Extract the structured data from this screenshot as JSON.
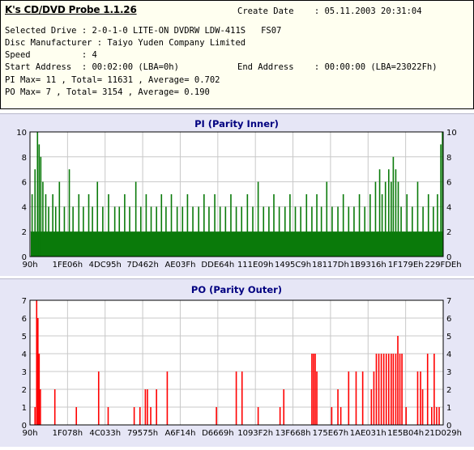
{
  "info": {
    "app_title": "K's CD/DVD Probe 1.1.26",
    "create_date": "Create Date    : 05.11.2003 20:31:04",
    "selected_drive": "Selected Drive : 2-0-1-0 LITE-ON DVDRW LDW-411S   FS07",
    "disc_manufacturer": "Disc Manufacturer : Taiyo Yuden Company Limited",
    "speed": "Speed          : 4",
    "start_address": "Start Address  : 00:02:00 (LBA=0h)",
    "end_address": "End Address    : 00:00:00 (LBA=23022Fh)",
    "pi_summary": "PI Max= 11 , Total= 11631 , Average= 0.702",
    "po_summary": "PO Max= 7 , Total= 3154 , Average= 0.190"
  },
  "colors": {
    "pi_bars": "#0a7a0a",
    "po_bars": "#ff0000",
    "title": "#000080",
    "panel_bg": "#e6e6f6"
  },
  "chart_data": [
    {
      "type": "bar",
      "title": "PI (Parity Inner)",
      "ylim": [
        0,
        10
      ],
      "yticks": [
        "0",
        "2",
        "4",
        "6",
        "8",
        "10"
      ],
      "xtick_labels": [
        "90h",
        "1FE06h",
        "4DC95h",
        "7D462h",
        "AE03Fh",
        "DDE64h",
        "111E09h",
        "1495C9h",
        "18117Dh",
        "1B9316h",
        "1F179Eh",
        "229FDEh"
      ],
      "x_range": [
        "90h",
        "229FDEh"
      ],
      "baseline": 2,
      "dense_baseline_level": 2,
      "grid": true,
      "spikes": [
        {
          "x": 0.005,
          "v": 5
        },
        {
          "x": 0.012,
          "v": 7
        },
        {
          "x": 0.018,
          "v": 10
        },
        {
          "x": 0.022,
          "v": 9
        },
        {
          "x": 0.026,
          "v": 8
        },
        {
          "x": 0.031,
          "v": 6
        },
        {
          "x": 0.038,
          "v": 5
        },
        {
          "x": 0.045,
          "v": 4
        },
        {
          "x": 0.055,
          "v": 5
        },
        {
          "x": 0.062,
          "v": 4
        },
        {
          "x": 0.071,
          "v": 6
        },
        {
          "x": 0.083,
          "v": 4
        },
        {
          "x": 0.095,
          "v": 7
        },
        {
          "x": 0.104,
          "v": 4
        },
        {
          "x": 0.118,
          "v": 5
        },
        {
          "x": 0.129,
          "v": 4
        },
        {
          "x": 0.142,
          "v": 5
        },
        {
          "x": 0.151,
          "v": 4
        },
        {
          "x": 0.163,
          "v": 6
        },
        {
          "x": 0.176,
          "v": 4
        },
        {
          "x": 0.19,
          "v": 5
        },
        {
          "x": 0.205,
          "v": 4
        },
        {
          "x": 0.216,
          "v": 4
        },
        {
          "x": 0.229,
          "v": 5
        },
        {
          "x": 0.241,
          "v": 4
        },
        {
          "x": 0.256,
          "v": 6
        },
        {
          "x": 0.268,
          "v": 4
        },
        {
          "x": 0.281,
          "v": 5
        },
        {
          "x": 0.293,
          "v": 4
        },
        {
          "x": 0.306,
          "v": 4
        },
        {
          "x": 0.318,
          "v": 5
        },
        {
          "x": 0.329,
          "v": 4
        },
        {
          "x": 0.342,
          "v": 5
        },
        {
          "x": 0.356,
          "v": 4
        },
        {
          "x": 0.369,
          "v": 4
        },
        {
          "x": 0.381,
          "v": 5
        },
        {
          "x": 0.394,
          "v": 4
        },
        {
          "x": 0.408,
          "v": 4
        },
        {
          "x": 0.421,
          "v": 5
        },
        {
          "x": 0.433,
          "v": 4
        },
        {
          "x": 0.447,
          "v": 5
        },
        {
          "x": 0.46,
          "v": 4
        },
        {
          "x": 0.473,
          "v": 4
        },
        {
          "x": 0.486,
          "v": 5
        },
        {
          "x": 0.499,
          "v": 4
        },
        {
          "x": 0.512,
          "v": 4
        },
        {
          "x": 0.526,
          "v": 5
        },
        {
          "x": 0.539,
          "v": 4
        },
        {
          "x": 0.552,
          "v": 6
        },
        {
          "x": 0.565,
          "v": 4
        },
        {
          "x": 0.578,
          "v": 4
        },
        {
          "x": 0.59,
          "v": 5
        },
        {
          "x": 0.603,
          "v": 4
        },
        {
          "x": 0.617,
          "v": 4
        },
        {
          "x": 0.629,
          "v": 5
        },
        {
          "x": 0.642,
          "v": 4
        },
        {
          "x": 0.655,
          "v": 4
        },
        {
          "x": 0.669,
          "v": 5
        },
        {
          "x": 0.682,
          "v": 4
        },
        {
          "x": 0.694,
          "v": 5
        },
        {
          "x": 0.705,
          "v": 4
        },
        {
          "x": 0.718,
          "v": 6
        },
        {
          "x": 0.731,
          "v": 4
        },
        {
          "x": 0.745,
          "v": 4
        },
        {
          "x": 0.758,
          "v": 5
        },
        {
          "x": 0.771,
          "v": 4
        },
        {
          "x": 0.784,
          "v": 4
        },
        {
          "x": 0.797,
          "v": 5
        },
        {
          "x": 0.81,
          "v": 4
        },
        {
          "x": 0.823,
          "v": 5
        },
        {
          "x": 0.836,
          "v": 6
        },
        {
          "x": 0.846,
          "v": 7
        },
        {
          "x": 0.852,
          "v": 5
        },
        {
          "x": 0.86,
          "v": 6
        },
        {
          "x": 0.868,
          "v": 7
        },
        {
          "x": 0.874,
          "v": 6
        },
        {
          "x": 0.879,
          "v": 8
        },
        {
          "x": 0.885,
          "v": 7
        },
        {
          "x": 0.891,
          "v": 6
        },
        {
          "x": 0.898,
          "v": 4
        },
        {
          "x": 0.912,
          "v": 5
        },
        {
          "x": 0.925,
          "v": 4
        },
        {
          "x": 0.938,
          "v": 6
        },
        {
          "x": 0.951,
          "v": 4
        },
        {
          "x": 0.964,
          "v": 5
        },
        {
          "x": 0.976,
          "v": 4
        },
        {
          "x": 0.986,
          "v": 5
        },
        {
          "x": 0.994,
          "v": 9
        },
        {
          "x": 0.998,
          "v": 10
        }
      ]
    },
    {
      "type": "bar",
      "title": "PO (Parity Outer)",
      "ylim": [
        0,
        7
      ],
      "yticks": [
        "0",
        "1",
        "2",
        "3",
        "4",
        "5",
        "6",
        "7"
      ],
      "xtick_labels": [
        "90h",
        "1F078h",
        "4C033h",
        "79575h",
        "A6F14h",
        "D6669h",
        "1093F2h",
        "13F668h",
        "175E67h",
        "1AE031h",
        "1E5B04h",
        "21D029h"
      ],
      "x_range": [
        "90h",
        "21D029h"
      ],
      "grid": true,
      "spikes": [
        {
          "x": 0.012,
          "v": 1
        },
        {
          "x": 0.016,
          "v": 7
        },
        {
          "x": 0.019,
          "v": 6
        },
        {
          "x": 0.022,
          "v": 4
        },
        {
          "x": 0.025,
          "v": 2
        },
        {
          "x": 0.06,
          "v": 2
        },
        {
          "x": 0.112,
          "v": 1
        },
        {
          "x": 0.166,
          "v": 3
        },
        {
          "x": 0.189,
          "v": 1
        },
        {
          "x": 0.252,
          "v": 1
        },
        {
          "x": 0.266,
          "v": 1
        },
        {
          "x": 0.279,
          "v": 2
        },
        {
          "x": 0.284,
          "v": 2
        },
        {
          "x": 0.292,
          "v": 1
        },
        {
          "x": 0.306,
          "v": 2
        },
        {
          "x": 0.332,
          "v": 3
        },
        {
          "x": 0.451,
          "v": 1
        },
        {
          "x": 0.499,
          "v": 3
        },
        {
          "x": 0.513,
          "v": 3
        },
        {
          "x": 0.552,
          "v": 1
        },
        {
          "x": 0.605,
          "v": 1
        },
        {
          "x": 0.614,
          "v": 2
        },
        {
          "x": 0.682,
          "v": 4
        },
        {
          "x": 0.686,
          "v": 4
        },
        {
          "x": 0.69,
          "v": 4
        },
        {
          "x": 0.694,
          "v": 3
        },
        {
          "x": 0.73,
          "v": 1
        },
        {
          "x": 0.745,
          "v": 2
        },
        {
          "x": 0.752,
          "v": 1
        },
        {
          "x": 0.771,
          "v": 3
        },
        {
          "x": 0.789,
          "v": 3
        },
        {
          "x": 0.805,
          "v": 3
        },
        {
          "x": 0.826,
          "v": 2
        },
        {
          "x": 0.832,
          "v": 3
        },
        {
          "x": 0.838,
          "v": 4
        },
        {
          "x": 0.844,
          "v": 4
        },
        {
          "x": 0.85,
          "v": 4
        },
        {
          "x": 0.856,
          "v": 4
        },
        {
          "x": 0.862,
          "v": 4
        },
        {
          "x": 0.868,
          "v": 4
        },
        {
          "x": 0.874,
          "v": 4
        },
        {
          "x": 0.879,
          "v": 4
        },
        {
          "x": 0.885,
          "v": 4
        },
        {
          "x": 0.89,
          "v": 5
        },
        {
          "x": 0.895,
          "v": 4
        },
        {
          "x": 0.9,
          "v": 4
        },
        {
          "x": 0.91,
          "v": 1
        },
        {
          "x": 0.938,
          "v": 3
        },
        {
          "x": 0.945,
          "v": 3
        },
        {
          "x": 0.95,
          "v": 2
        },
        {
          "x": 0.962,
          "v": 4
        },
        {
          "x": 0.972,
          "v": 1
        },
        {
          "x": 0.978,
          "v": 4
        },
        {
          "x": 0.984,
          "v": 1
        },
        {
          "x": 0.99,
          "v": 1
        }
      ]
    }
  ]
}
